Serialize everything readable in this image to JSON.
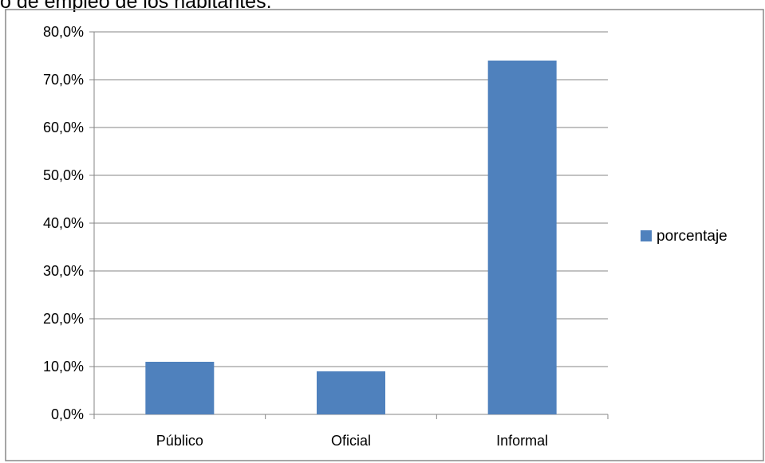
{
  "heading_text": "o de empleo de los habitantes.",
  "chart_data": {
    "type": "bar",
    "title": "",
    "xlabel": "",
    "ylabel": "",
    "categories": [
      "Público",
      "Oficial",
      "Informal"
    ],
    "series": [
      {
        "name": "porcentaje",
        "values": [
          11.0,
          9.0,
          74.0
        ],
        "color": "#4F81BD"
      }
    ],
    "ylim": [
      0,
      80
    ],
    "yticks": [
      0,
      10,
      20,
      30,
      40,
      50,
      60,
      70,
      80
    ],
    "ytick_labels": [
      "0,0%",
      "10,0%",
      "20,0%",
      "30,0%",
      "40,0%",
      "50,0%",
      "60,0%",
      "70,0%",
      "80,0%"
    ],
    "grid": true,
    "legend_position": "right"
  }
}
